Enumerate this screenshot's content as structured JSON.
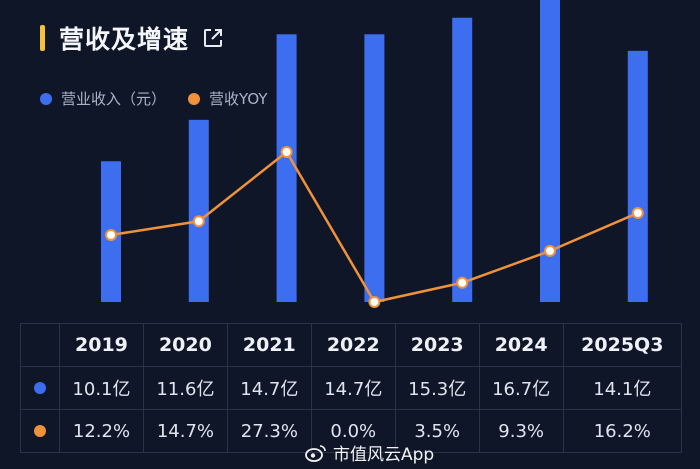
{
  "header": {
    "title": "营收及增速"
  },
  "colors": {
    "bar": "#3e6ef0",
    "line": "#f0923a",
    "background": "#0f1628",
    "accent": "#f5c13a"
  },
  "legend": [
    {
      "label": "营业收入（元）",
      "color": "#3e6ef0"
    },
    {
      "label": "营收YOY",
      "color": "#f0923a"
    }
  ],
  "chart_data": {
    "type": "bar",
    "categories": [
      "2019",
      "2020",
      "2021",
      "2022",
      "2023",
      "2024",
      "2025Q3"
    ],
    "series": [
      {
        "name": "营业收入（元）",
        "type": "bar",
        "values": [
          10.1,
          11.6,
          14.7,
          14.7,
          15.3,
          16.7,
          14.1
        ],
        "unit": "亿"
      },
      {
        "name": "营收YOY",
        "type": "line",
        "values": [
          12.2,
          14.7,
          27.3,
          0.0,
          3.5,
          9.3,
          16.2
        ],
        "unit": "%"
      }
    ]
  },
  "table": {
    "headers": [
      "2019",
      "2020",
      "2021",
      "2022",
      "2023",
      "2024",
      "2025Q3"
    ],
    "revenue": [
      "10.1亿",
      "11.6亿",
      "14.7亿",
      "14.7亿",
      "15.3亿",
      "16.7亿",
      "14.1亿"
    ],
    "yoy": [
      "12.2%",
      "14.7%",
      "27.3%",
      "0.0%",
      "3.5%",
      "9.3%",
      "16.2%"
    ]
  },
  "watermark": {
    "text": "市值风云App"
  }
}
